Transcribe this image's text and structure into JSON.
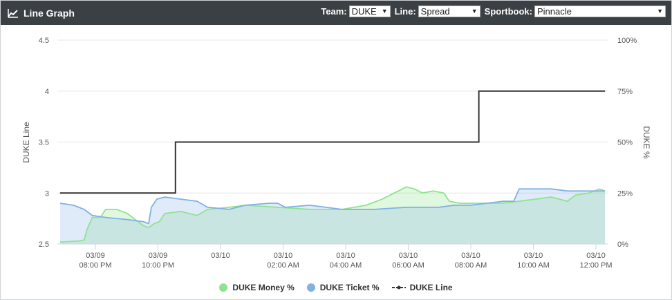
{
  "header": {
    "title": "Line Graph",
    "team_label": "Team:",
    "team_value": "DUKE",
    "line_label": "Line:",
    "line_value": "Spread",
    "sportsbook_label": "Sportbook:",
    "sportsbook_value": "Pinnacle"
  },
  "colors": {
    "header_bg": "#3b4045",
    "money": "#8fe38f",
    "ticket": "#7fb1e3",
    "line": "#333333"
  },
  "chart_data": {
    "type": "line",
    "title": "",
    "xlabel": "",
    "ylabel_left": "DUKE Line",
    "ylabel_right": "DUKE %",
    "ylim_left": [
      2.5,
      4.5
    ],
    "yticks_left": [
      "2.5",
      "3",
      "3.5",
      "4",
      "4.5"
    ],
    "ylim_right": [
      0,
      100
    ],
    "yticks_right": [
      "0%",
      "25%",
      "50%",
      "75%",
      "100%"
    ],
    "xlim": [
      "03/09 07:10 PM",
      "03/10 12:15 PM"
    ],
    "xticks": [
      {
        "date": "03/09",
        "time": "08:00 PM"
      },
      {
        "date": "03/09",
        "time": "10:00 PM"
      },
      {
        "date": "03/10",
        "time": ""
      },
      {
        "date": "03/10",
        "time": "02:00 AM"
      },
      {
        "date": "03/10",
        "time": "04:00 AM"
      },
      {
        "date": "03/10",
        "time": "06:00 AM"
      },
      {
        "date": "03/10",
        "time": "08:00 AM"
      },
      {
        "date": "03/10",
        "time": "10:00 AM"
      },
      {
        "date": "03/10",
        "time": "12:00 PM"
      }
    ],
    "grid": true,
    "legend_position": "bottom-center",
    "series": [
      {
        "name": "DUKE Money %",
        "axis": "right",
        "style": "area",
        "points": [
          [
            "03/09 07:15 PM",
            1
          ],
          [
            "03/09 07:50 PM",
            1.5
          ],
          [
            "03/09 08:00 PM",
            2
          ],
          [
            "03/09 08:05 PM",
            7
          ],
          [
            "03/09 08:15 PM",
            13
          ],
          [
            "03/09 08:30 PM",
            13
          ],
          [
            "03/09 08:40 PM",
            17
          ],
          [
            "03/09 09:00 PM",
            17
          ],
          [
            "03/09 09:20 PM",
            15
          ],
          [
            "03/09 09:35 PM",
            12
          ],
          [
            "03/09 09:50 PM",
            9
          ],
          [
            "03/09 10:00 PM",
            8
          ],
          [
            "03/09 10:10 PM",
            10
          ],
          [
            "03/09 10:20 PM",
            11
          ],
          [
            "03/09 10:30 PM",
            15
          ],
          [
            "03/09 11:00 PM",
            16
          ],
          [
            "03/09 11:30 PM",
            14
          ],
          [
            "03/09 11:50 PM",
            17
          ],
          [
            "03/10 12:30 AM",
            18
          ],
          [
            "03/10 01:00 AM",
            19
          ],
          [
            "03/10 02:00 AM",
            18
          ],
          [
            "03/10 03:00 AM",
            17
          ],
          [
            "03/10 04:00 AM",
            17
          ],
          [
            "03/10 04:45 AM",
            19
          ],
          [
            "03/10 05:15 AM",
            22
          ],
          [
            "03/10 05:45 AM",
            26
          ],
          [
            "03/10 06:00 AM",
            28
          ],
          [
            "03/10 06:15 AM",
            27
          ],
          [
            "03/10 06:30 AM",
            25
          ],
          [
            "03/10 06:50 AM",
            26
          ],
          [
            "03/10 07:10 AM",
            25
          ],
          [
            "03/10 07:20 AM",
            21
          ],
          [
            "03/10 07:40 AM",
            20
          ],
          [
            "03/10 08:20 AM",
            20
          ],
          [
            "03/10 09:00 AM",
            20
          ],
          [
            "03/10 09:30 AM",
            21
          ],
          [
            "03/10 10:00 AM",
            22
          ],
          [
            "03/10 10:30 AM",
            23
          ],
          [
            "03/10 11:00 AM",
            21
          ],
          [
            "03/10 11:15 AM",
            24
          ],
          [
            "03/10 11:40 AM",
            25
          ],
          [
            "03/10 12:00 PM",
            27
          ],
          [
            "03/10 12:10 PM",
            26
          ]
        ]
      },
      {
        "name": "DUKE Ticket %",
        "axis": "right",
        "style": "area",
        "points": [
          [
            "03/09 07:15 PM",
            20
          ],
          [
            "03/09 07:40 PM",
            19
          ],
          [
            "03/09 07:50 PM",
            18
          ],
          [
            "03/09 08:00 PM",
            17
          ],
          [
            "03/09 08:15 PM",
            14
          ],
          [
            "03/09 08:40 PM",
            13
          ],
          [
            "03/09 09:20 PM",
            12
          ],
          [
            "03/09 09:50 PM",
            11
          ],
          [
            "03/09 10:00 PM",
            10
          ],
          [
            "03/09 10:05 PM",
            18
          ],
          [
            "03/09 10:15 PM",
            22
          ],
          [
            "03/09 10:30 PM",
            23
          ],
          [
            "03/09 11:00 PM",
            22
          ],
          [
            "03/09 11:30 PM",
            21
          ],
          [
            "03/09 11:50 PM",
            18
          ],
          [
            "03/10 12:30 AM",
            17
          ],
          [
            "03/10 01:00 AM",
            19
          ],
          [
            "03/10 01:45 AM",
            20
          ],
          [
            "03/10 02:00 AM",
            20
          ],
          [
            "03/10 02:15 AM",
            18
          ],
          [
            "03/10 03:00 AM",
            19
          ],
          [
            "03/10 04:00 AM",
            17
          ],
          [
            "03/10 05:00 AM",
            17
          ],
          [
            "03/10 06:00 AM",
            18
          ],
          [
            "03/10 07:00 AM",
            18
          ],
          [
            "03/10 07:30 AM",
            19
          ],
          [
            "03/10 08:00 AM",
            19
          ],
          [
            "03/10 08:30 AM",
            20
          ],
          [
            "03/10 09:00 AM",
            21
          ],
          [
            "03/10 09:20 AM",
            21
          ],
          [
            "03/10 09:30 AM",
            27
          ],
          [
            "03/10 10:00 AM",
            27
          ],
          [
            "03/10 10:30 AM",
            27
          ],
          [
            "03/10 11:00 AM",
            26
          ],
          [
            "03/10 11:30 AM",
            26
          ],
          [
            "03/10 12:10 PM",
            26
          ]
        ]
      },
      {
        "name": "DUKE Line",
        "axis": "left",
        "style": "step",
        "points": [
          [
            "03/09 07:15 PM",
            3.0
          ],
          [
            "03/09 10:50 PM",
            3.0
          ],
          [
            "03/09 10:50 PM",
            3.5
          ],
          [
            "03/10 08:15 AM",
            3.5
          ],
          [
            "03/10 08:15 AM",
            4.0
          ],
          [
            "03/10 12:10 PM",
            4.0
          ]
        ]
      }
    ]
  }
}
